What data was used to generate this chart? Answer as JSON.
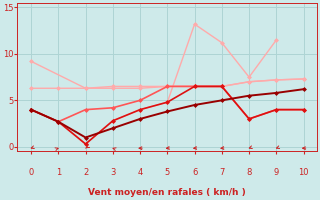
{
  "xlabel": "Vent moyen/en rafales ( km/h )",
  "xlim": [
    -0.5,
    10.5
  ],
  "ylim": [
    -0.5,
    15.5
  ],
  "yticks": [
    0,
    5,
    10,
    15
  ],
  "xticks": [
    0,
    1,
    2,
    3,
    4,
    5,
    6,
    7,
    8,
    9,
    10
  ],
  "bg_color": "#ceeaea",
  "grid_color": "#aed4d4",
  "line_configs": [
    {
      "x": [
        0,
        1,
        2,
        3,
        4,
        5,
        6,
        7,
        8,
        9,
        10
      ],
      "y": [
        6.3,
        6.3,
        6.3,
        6.3,
        6.3,
        6.5,
        6.5,
        6.5,
        7.0,
        7.2,
        7.3
      ],
      "color": "#ffaaaa",
      "lw": 1.0,
      "ms": 2.5
    },
    {
      "x": [
        0,
        2,
        3,
        4,
        5,
        6,
        7,
        8,
        9,
        10
      ],
      "y": [
        9.2,
        6.3,
        6.5,
        6.5,
        6.5,
        6.5,
        6.5,
        7.0,
        7.2,
        7.3
      ],
      "color": "#ffaaaa",
      "lw": 1.0,
      "ms": 2.5
    },
    {
      "x": [
        0,
        1,
        2,
        3,
        4,
        5,
        6,
        7,
        8,
        9
      ],
      "y": [
        4.0,
        2.7,
        0.3,
        2.8,
        4.0,
        4.8,
        13.2,
        11.2,
        7.5,
        11.5
      ],
      "color": "#ffaaaa",
      "lw": 1.0,
      "ms": 2.5
    },
    {
      "x": [
        0,
        1,
        2,
        3,
        4,
        5,
        6,
        7,
        8,
        9,
        10
      ],
      "y": [
        4.0,
        2.7,
        4.0,
        4.2,
        5.0,
        6.5,
        6.5,
        6.5,
        3.0,
        4.0,
        4.0
      ],
      "color": "#ff5555",
      "lw": 1.2,
      "ms": 2.5
    },
    {
      "x": [
        0,
        1,
        2,
        3,
        4,
        5,
        6,
        7,
        8,
        9,
        10
      ],
      "y": [
        4.0,
        2.7,
        0.3,
        2.8,
        4.0,
        4.8,
        6.5,
        6.5,
        3.0,
        4.0,
        4.0
      ],
      "color": "#dd1111",
      "lw": 1.2,
      "ms": 2.5
    },
    {
      "x": [
        0,
        1,
        2,
        3,
        4,
        5,
        6,
        7,
        8,
        9,
        10
      ],
      "y": [
        4.0,
        2.7,
        1.0,
        2.0,
        3.0,
        3.8,
        4.5,
        5.0,
        5.5,
        5.8,
        6.2
      ],
      "color": "#990000",
      "lw": 1.4,
      "ms": 2.5
    }
  ],
  "arrows": {
    "x": [
      0,
      1,
      2,
      3,
      4,
      5,
      6,
      7,
      8,
      9,
      10
    ],
    "color": "#cc2222",
    "angles_deg": [
      225,
      45,
      210,
      315,
      270,
      255,
      255,
      255,
      225,
      225,
      270
    ]
  }
}
